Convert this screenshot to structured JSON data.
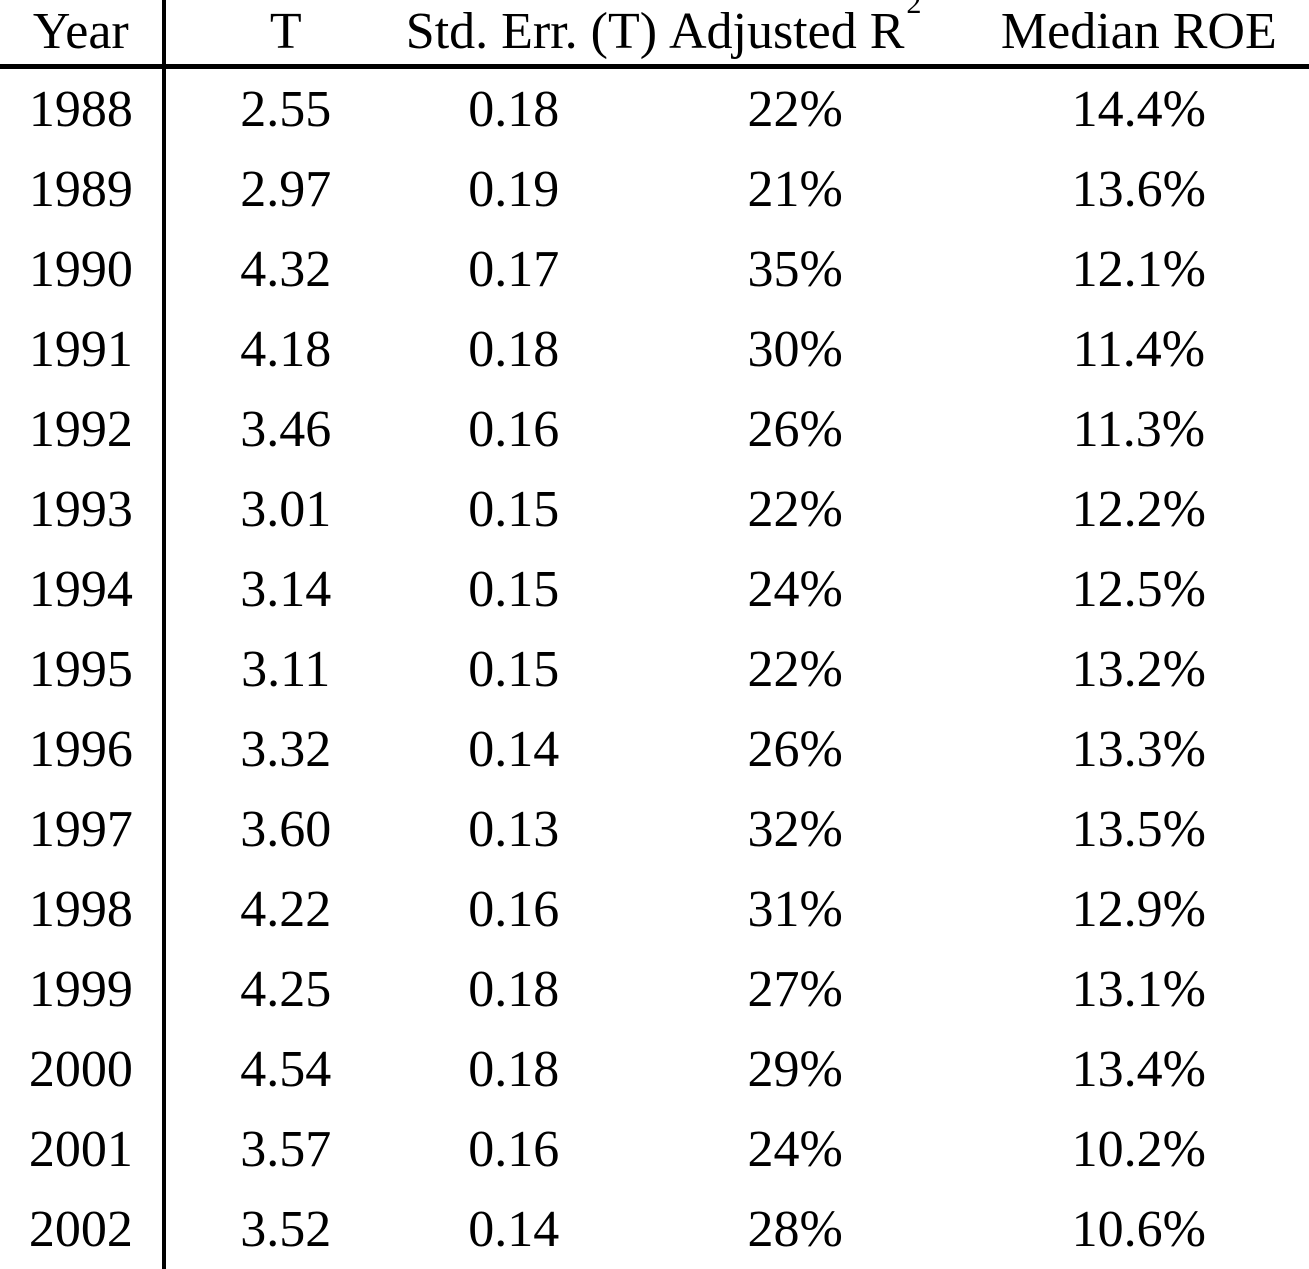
{
  "chart_data": {
    "type": "table",
    "title": "",
    "columns": [
      {
        "label": "Year"
      },
      {
        "label": "T"
      },
      {
        "label": "Std. Err. (T)"
      },
      {
        "label": "Adjusted R",
        "superscript": "2"
      },
      {
        "label": "Median ROE"
      }
    ],
    "rows": [
      [
        "1988",
        "2.55",
        "0.18",
        "22%",
        "14.4%"
      ],
      [
        "1989",
        "2.97",
        "0.19",
        "21%",
        "13.6%"
      ],
      [
        "1990",
        "4.32",
        "0.17",
        "35%",
        "12.1%"
      ],
      [
        "1991",
        "4.18",
        "0.18",
        "30%",
        "11.4%"
      ],
      [
        "1992",
        "3.46",
        "0.16",
        "26%",
        "11.3%"
      ],
      [
        "1993",
        "3.01",
        "0.15",
        "22%",
        "12.2%"
      ],
      [
        "1994",
        "3.14",
        "0.15",
        "24%",
        "12.5%"
      ],
      [
        "1995",
        "3.11",
        "0.15",
        "22%",
        "13.2%"
      ],
      [
        "1996",
        "3.32",
        "0.14",
        "26%",
        "13.3%"
      ],
      [
        "1997",
        "3.60",
        "0.13",
        "32%",
        "13.5%"
      ],
      [
        "1998",
        "4.22",
        "0.16",
        "31%",
        "12.9%"
      ],
      [
        "1999",
        "4.25",
        "0.18",
        "27%",
        "13.1%"
      ],
      [
        "2000",
        "4.54",
        "0.18",
        "29%",
        "13.4%"
      ],
      [
        "2001",
        "3.57",
        "0.16",
        "24%",
        "10.2%"
      ],
      [
        "2002",
        "3.52",
        "0.14",
        "28%",
        "10.6%"
      ]
    ],
    "layout": {
      "grid": "off",
      "vertical_rule_after_column": "Year",
      "horizontal_rule_below_header": true
    }
  }
}
